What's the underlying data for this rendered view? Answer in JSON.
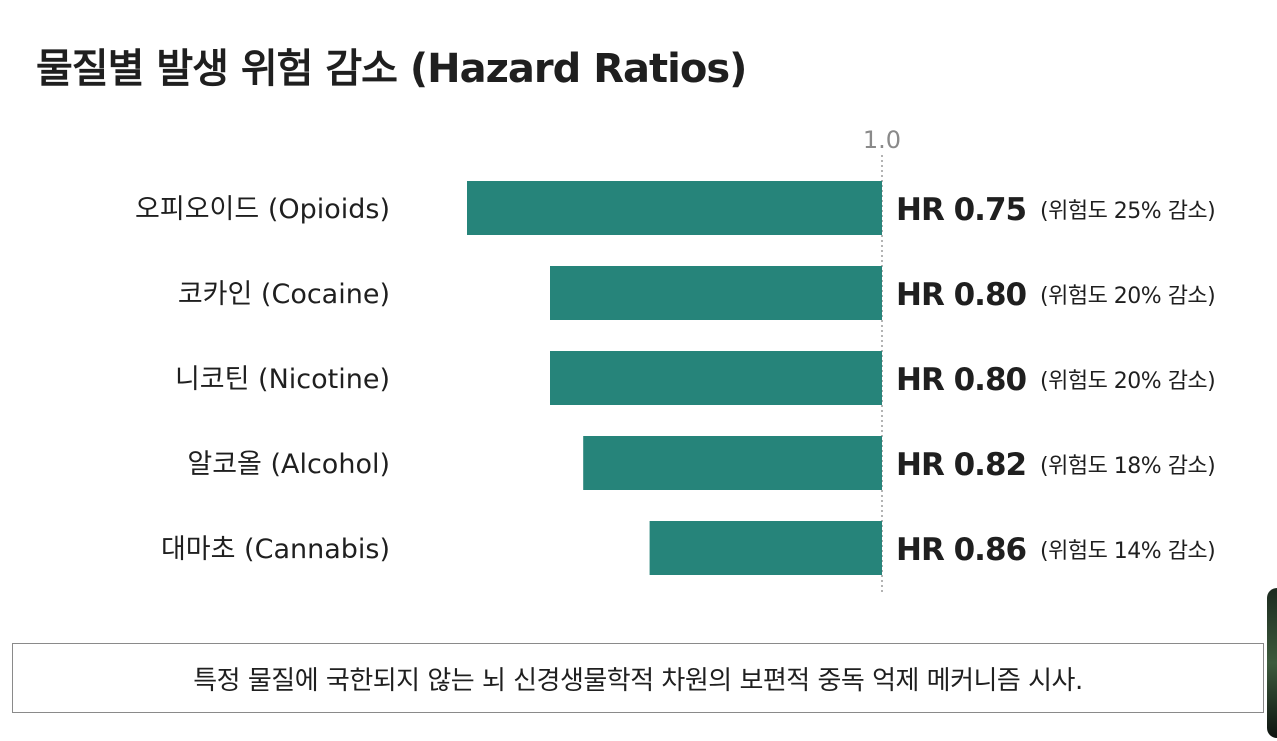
{
  "chart_data": {
    "type": "bar",
    "orientation": "horizontal",
    "title": "물질별 발생 위험 감소 (Hazard Ratios)",
    "reference_line": {
      "value": 1.0,
      "label": "1.0",
      "style": "dotted"
    },
    "categories": [
      "오피오이드 (Opioids)",
      "코카인 (Cocaine)",
      "니코틴 (Nicotine)",
      "알코올 (Alcohol)",
      "대마초 (Cannabis)"
    ],
    "values": [
      0.75,
      0.8,
      0.8,
      0.82,
      0.86
    ],
    "value_labels": [
      "HR 0.75",
      "HR 0.80",
      "HR 0.80",
      "HR 0.82",
      "HR 0.86"
    ],
    "notes": [
      "(위험도 25% 감소)",
      "(위험도 20% 감소)",
      "(위험도 20% 감소)",
      "(위험도 18% 감소)",
      "(위험도 14% 감소)"
    ],
    "bar_color": "#26847a",
    "grid": false,
    "legend": "none"
  },
  "footnote": "특정 물질에 국한되지 않는 뇌 신경생물학적 차원의 보편적 중독 억제 메커니즘 시사."
}
